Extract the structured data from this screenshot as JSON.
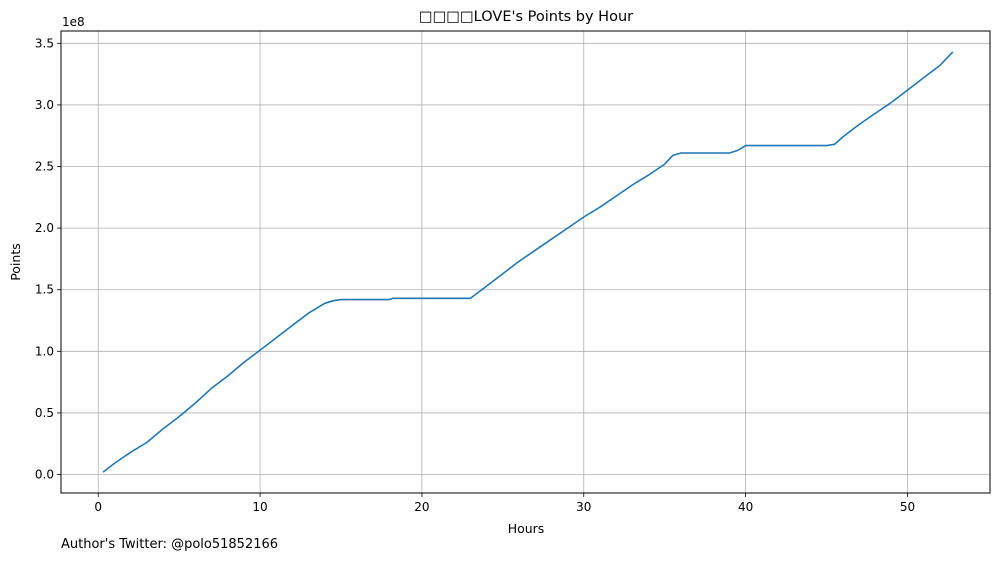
{
  "chart_data": {
    "type": "line",
    "title": "□□□□LOVE's Points by Hour",
    "xlabel": "Hours",
    "ylabel": "Points",
    "offset_label": "1e8",
    "xlim": [
      -2.3,
      55.1
    ],
    "ylim": [
      -0.15,
      3.6
    ],
    "xticks": [
      0,
      10,
      20,
      30,
      40,
      50
    ],
    "xtick_labels": [
      "0",
      "10",
      "20",
      "30",
      "40",
      "50"
    ],
    "yticks": [
      0.0,
      0.5,
      1.0,
      1.5,
      2.0,
      2.5,
      3.0,
      3.5
    ],
    "ytick_labels": [
      "0.0",
      "0.5",
      "1.0",
      "1.5",
      "2.0",
      "2.5",
      "3.0",
      "3.5"
    ],
    "grid": true,
    "color": "#1f77b4",
    "series": [
      {
        "x": [
          0.3,
          1.0,
          2.0,
          3.0,
          4.0,
          5.0,
          6.0,
          7.0,
          8.0,
          9.0,
          10.0,
          11.0,
          12.0,
          13.0,
          14.0,
          14.5,
          15.0,
          16.0,
          17.0,
          18.0,
          18.2,
          19.0,
          19.6,
          20.0,
          21.0,
          22.0,
          23.0,
          24.0,
          25.0,
          26.0,
          27.0,
          28.0,
          29.0,
          30.0,
          31.0,
          32.0,
          33.0,
          34.0,
          35.0,
          35.5,
          36.0,
          37.0,
          38.0,
          39.0,
          39.5,
          40.0,
          41.0,
          42.0,
          43.0,
          44.0,
          45.0,
          45.5,
          46.0,
          47.0,
          48.0,
          49.0,
          50.0,
          51.0,
          52.0,
          52.8
        ],
        "y": [
          0.02,
          0.09,
          0.18,
          0.26,
          0.37,
          0.47,
          0.58,
          0.7,
          0.8,
          0.91,
          1.01,
          1.11,
          1.21,
          1.31,
          1.39,
          1.41,
          1.42,
          1.42,
          1.42,
          1.42,
          1.43,
          1.43,
          1.43,
          1.43,
          1.43,
          1.43,
          1.43,
          1.53,
          1.63,
          1.73,
          1.82,
          1.91,
          2.0,
          2.09,
          2.17,
          2.26,
          2.35,
          2.43,
          2.52,
          2.59,
          2.61,
          2.61,
          2.61,
          2.61,
          2.63,
          2.67,
          2.67,
          2.67,
          2.67,
          2.67,
          2.67,
          2.68,
          2.74,
          2.84,
          2.93,
          3.02,
          3.12,
          3.22,
          3.32,
          3.43
        ]
      }
    ]
  },
  "footer": {
    "author": "Author's Twitter: @polo51852166"
  }
}
